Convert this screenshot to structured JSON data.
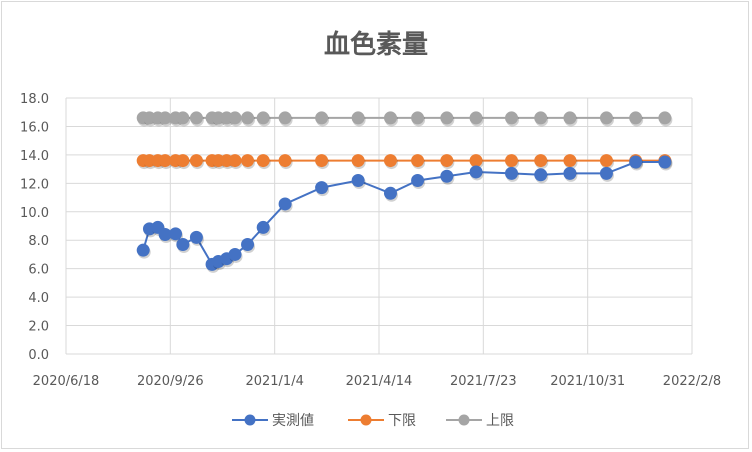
{
  "chart_data": {
    "type": "line",
    "title": "血色素量",
    "xlabel": "",
    "ylabel": "",
    "ylim": [
      0,
      18
    ],
    "yticks": [
      "0.0",
      "2.0",
      "4.0",
      "6.0",
      "8.0",
      "10.0",
      "12.0",
      "14.0",
      "16.0",
      "18.0"
    ],
    "xlim": [
      "2020/6/18",
      "2022/2/8"
    ],
    "xticks": [
      "2020/6/18",
      "2020/9/26",
      "2021/1/4",
      "2021/4/14",
      "2021/7/23",
      "2021/10/31",
      "2022/2/8"
    ],
    "grid": true,
    "legend": "bottom",
    "x": [
      "2020/8/31",
      "2020/9/6",
      "2020/9/14",
      "2020/9/21",
      "2020/10/1",
      "2020/10/8",
      "2020/10/21",
      "2020/11/5",
      "2020/11/11",
      "2020/11/19",
      "2020/11/27",
      "2020/12/9",
      "2020/12/24",
      "2021/1/14",
      "2021/2/18",
      "2021/3/25",
      "2021/4/25",
      "2021/5/21",
      "2021/6/18",
      "2021/7/16",
      "2021/8/19",
      "2021/9/16",
      "2021/10/14",
      "2021/11/18",
      "2021/12/16",
      "2022/1/13"
    ],
    "series": [
      {
        "name": "実測値",
        "color": "#4472c4",
        "values": [
          7.3,
          8.8,
          8.9,
          8.4,
          8.45,
          7.7,
          8.2,
          6.3,
          6.5,
          6.7,
          7.0,
          7.7,
          8.9,
          10.55,
          11.7,
          12.2,
          11.3,
          12.2,
          12.5,
          12.8,
          12.7,
          12.6,
          12.7,
          12.7,
          13.5,
          13.5
        ]
      },
      {
        "name": "下限",
        "color": "#ed7d31",
        "values": [
          13.6,
          13.6,
          13.6,
          13.6,
          13.6,
          13.6,
          13.6,
          13.6,
          13.6,
          13.6,
          13.6,
          13.6,
          13.6,
          13.6,
          13.6,
          13.6,
          13.6,
          13.6,
          13.6,
          13.6,
          13.6,
          13.6,
          13.6,
          13.6,
          13.6,
          13.6
        ]
      },
      {
        "name": "上限",
        "color": "#a5a5a5",
        "values": [
          16.6,
          16.6,
          16.6,
          16.6,
          16.6,
          16.6,
          16.6,
          16.6,
          16.6,
          16.6,
          16.6,
          16.6,
          16.6,
          16.6,
          16.6,
          16.6,
          16.6,
          16.6,
          16.6,
          16.6,
          16.6,
          16.6,
          16.6,
          16.6,
          16.6,
          16.6
        ]
      }
    ]
  }
}
